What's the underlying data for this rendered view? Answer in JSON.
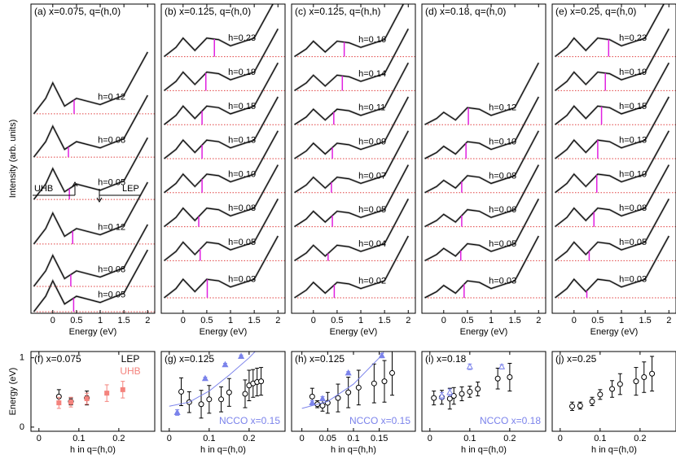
{
  "chart_data": [
    {
      "type": "line",
      "title": "(a) x=0.075, q=(h,0)",
      "xlabel": "Energy (eV)",
      "ylabel": "Intensity (arb. units)",
      "xlim": [
        -0.46,
        2.15
      ],
      "ylim": [
        0,
        10
      ],
      "xticks": [
        0,
        0.5,
        1,
        1.5,
        2
      ],
      "x": [
        -0.4,
        -0.15,
        0,
        0.25,
        0.5,
        0.75,
        1,
        1.5,
        2
      ],
      "annotations": [
        "UHB",
        "LEP"
      ],
      "series": [
        {
          "name": "h=0.12",
          "color": "#000000",
          "lep": 0.45,
          "values": [
            6.45,
            6.95,
            7.45,
            6.7,
            6.95,
            6.85,
            6.75,
            7.05,
            8.45
          ]
        },
        {
          "name": "h=0.08",
          "color": "#000000",
          "lep": 0.33,
          "values": [
            5.05,
            5.55,
            6.05,
            5.3,
            5.55,
            5.45,
            5.35,
            5.65,
            7.05
          ]
        },
        {
          "name": "h=0.05",
          "color": "#000000",
          "lep": 0.35,
          "values": [
            3.68,
            4.18,
            4.68,
            3.93,
            4.18,
            4.08,
            3.98,
            4.28,
            5.68
          ]
        },
        {
          "name": "h=0.12",
          "color": "#000000",
          "lep": 0.42,
          "values": [
            2.24,
            2.74,
            3.24,
            2.49,
            2.74,
            2.64,
            2.54,
            2.84,
            4.24
          ]
        },
        {
          "name": "h=0.08",
          "color": "#000000",
          "lep": 0.38,
          "values": [
            0.87,
            1.37,
            1.87,
            1.12,
            1.37,
            1.27,
            1.17,
            1.47,
            2.87
          ]
        },
        {
          "name": "h=0.05",
          "color": "#000000",
          "lep": 0.44,
          "values": [
            0.05,
            0.55,
            1.05,
            0.3,
            0.55,
            0.45,
            0.35,
            0.65,
            2.05
          ]
        }
      ]
    },
    {
      "type": "line",
      "title": "(b) x=0.125, q=(h,0)",
      "xlabel": "Energy (eV)",
      "xlim": [
        -0.46,
        2.15
      ],
      "ylim": [
        0,
        10
      ],
      "xticks": [
        0,
        0.5,
        1,
        1.5,
        2
      ],
      "x": [
        -0.4,
        -0.15,
        0,
        0.25,
        0.5,
        0.75,
        1,
        1.5,
        2
      ],
      "series": [
        {
          "name": "h=0.23",
          "color": "#000000",
          "lep": 0.66,
          "values": [
            8.3,
            8.6,
            8.9,
            8.5,
            8.9,
            8.85,
            8.65,
            8.9,
            10.3
          ]
        },
        {
          "name": "h=0.19",
          "color": "#000000",
          "lep": 0.48,
          "values": [
            7.2,
            7.5,
            7.8,
            7.4,
            7.8,
            7.75,
            7.55,
            7.8,
            9.2
          ]
        },
        {
          "name": "h=0.15",
          "color": "#000000",
          "lep": 0.4,
          "values": [
            6.1,
            6.4,
            6.7,
            6.3,
            6.7,
            6.65,
            6.45,
            6.7,
            8.1
          ]
        },
        {
          "name": "h=0.13",
          "color": "#000000",
          "lep": 0.4,
          "values": [
            5.0,
            5.3,
            5.6,
            5.2,
            5.6,
            5.55,
            5.35,
            5.6,
            7.0
          ]
        },
        {
          "name": "h=0.10",
          "color": "#000000",
          "lep": 0.4,
          "values": [
            3.9,
            4.2,
            4.5,
            4.1,
            4.5,
            4.45,
            4.25,
            4.5,
            5.9
          ]
        },
        {
          "name": "h=0.08",
          "color": "#000000",
          "lep": 0.33,
          "values": [
            2.8,
            3.1,
            3.4,
            3.0,
            3.4,
            3.35,
            3.15,
            3.4,
            4.8
          ]
        },
        {
          "name": "h=0.05",
          "color": "#000000",
          "lep": 0.36,
          "values": [
            1.7,
            2.0,
            2.3,
            1.9,
            2.3,
            2.25,
            2.05,
            2.3,
            3.7
          ]
        },
        {
          "name": "h=0.03",
          "color": "#000000",
          "lep": 0.51,
          "values": [
            0.5,
            0.8,
            1.1,
            0.7,
            1.1,
            1.05,
            0.85,
            1.1,
            2.5
          ]
        }
      ]
    },
    {
      "type": "line",
      "title": "(c) x=0.125, q=(h,h)",
      "xlabel": "Energy (eV)",
      "xlim": [
        -0.46,
        2.15
      ],
      "ylim": [
        0,
        10
      ],
      "xticks": [
        0,
        0.5,
        1,
        1.5,
        2
      ],
      "x": [
        -0.4,
        -0.15,
        0,
        0.25,
        0.5,
        0.75,
        1,
        1.5,
        2
      ],
      "series": [
        {
          "name": "h=0.16",
          "color": "#000000",
          "lep": 0.65,
          "values": [
            8.3,
            8.55,
            8.8,
            8.45,
            8.8,
            8.75,
            8.6,
            8.85,
            10.3
          ]
        },
        {
          "name": "h=0.14",
          "color": "#000000",
          "lep": 0.61,
          "values": [
            7.2,
            7.45,
            7.7,
            7.35,
            7.7,
            7.65,
            7.5,
            7.75,
            9.2
          ]
        },
        {
          "name": "h=0.11",
          "color": "#000000",
          "lep": 0.43,
          "values": [
            6.1,
            6.35,
            6.6,
            6.25,
            6.6,
            6.55,
            6.4,
            6.65,
            8.1
          ]
        },
        {
          "name": "h=0.09",
          "color": "#000000",
          "lep": 0.4,
          "values": [
            5.0,
            5.25,
            5.5,
            5.15,
            5.5,
            5.45,
            5.3,
            5.55,
            7.0
          ]
        },
        {
          "name": "h=0.07",
          "color": "#000000",
          "lep": 0.38,
          "values": [
            3.9,
            4.15,
            4.4,
            4.05,
            4.4,
            4.35,
            4.2,
            4.45,
            5.9
          ]
        },
        {
          "name": "h=0.05",
          "color": "#000000",
          "lep": 0.4,
          "values": [
            2.8,
            3.05,
            3.3,
            2.95,
            3.3,
            3.25,
            3.1,
            3.35,
            4.8
          ]
        },
        {
          "name": "h=0.04",
          "color": "#000000",
          "lep": 0.31,
          "values": [
            1.7,
            1.95,
            2.2,
            1.85,
            2.2,
            2.15,
            2.0,
            2.25,
            3.7
          ]
        },
        {
          "name": "h=0.02",
          "color": "#000000",
          "lep": 0.44,
          "values": [
            0.5,
            0.75,
            1.0,
            0.65,
            1.0,
            0.95,
            0.8,
            1.05,
            2.5
          ]
        }
      ]
    },
    {
      "type": "line",
      "title": "(d) x=0.18, q=(h,0)",
      "xlabel": "Energy (eV)",
      "xlim": [
        -0.46,
        2.15
      ],
      "ylim": [
        0,
        10
      ],
      "xticks": [
        0,
        0.5,
        1,
        1.5,
        2
      ],
      "x": [
        -0.4,
        -0.15,
        0,
        0.25,
        0.5,
        0.75,
        1,
        1.5,
        2
      ],
      "series": [
        {
          "name": "h=0.12",
          "color": "#000000",
          "lep": 0.52,
          "values": [
            6.1,
            6.3,
            6.5,
            6.25,
            6.65,
            6.6,
            6.4,
            6.65,
            8.1
          ]
        },
        {
          "name": "h=0.10",
          "color": "#000000",
          "lep": 0.47,
          "values": [
            5.0,
            5.2,
            5.4,
            5.15,
            5.55,
            5.5,
            5.3,
            5.55,
            7.0
          ]
        },
        {
          "name": "h=0.08",
          "color": "#000000",
          "lep": 0.38,
          "values": [
            3.9,
            4.1,
            4.3,
            4.05,
            4.45,
            4.4,
            4.2,
            4.45,
            5.9
          ]
        },
        {
          "name": "h=0.06",
          "color": "#000000",
          "lep": 0.38,
          "values": [
            2.8,
            3.0,
            3.2,
            2.95,
            3.35,
            3.3,
            3.1,
            3.35,
            4.8
          ]
        },
        {
          "name": "h=0.05",
          "color": "#000000",
          "lep": 0.36,
          "values": [
            1.7,
            1.9,
            2.1,
            1.85,
            2.25,
            2.2,
            2.0,
            2.25,
            3.7
          ]
        },
        {
          "name": "h=0.03",
          "color": "#000000",
          "lep": 0.43,
          "values": [
            0.5,
            0.7,
            0.9,
            0.65,
            1.05,
            1.0,
            0.8,
            1.05,
            2.5
          ]
        }
      ]
    },
    {
      "type": "line",
      "title": "(e) x=0.25, q=(h,0)",
      "xlabel": "Energy (eV)",
      "xlim": [
        -0.46,
        2.15
      ],
      "ylim": [
        0,
        10
      ],
      "xticks": [
        0,
        0.5,
        1,
        1.5,
        2
      ],
      "x": [
        -0.4,
        -0.15,
        0,
        0.25,
        0.5,
        0.75,
        1,
        1.5,
        2
      ],
      "series": [
        {
          "name": "h=0.23",
          "color": "#000000",
          "lep": 0.73,
          "values": [
            8.3,
            8.6,
            8.9,
            8.5,
            8.9,
            8.85,
            8.65,
            8.9,
            10.3
          ]
        },
        {
          "name": "h=0.19",
          "color": "#000000",
          "lep": 0.66,
          "values": [
            7.2,
            7.5,
            7.8,
            7.4,
            7.8,
            7.75,
            7.55,
            7.8,
            9.2
          ]
        },
        {
          "name": "h=0.15",
          "color": "#000000",
          "lep": 0.58,
          "values": [
            6.1,
            6.4,
            6.7,
            6.3,
            6.7,
            6.65,
            6.45,
            6.7,
            8.1
          ]
        },
        {
          "name": "h=0.13",
          "color": "#000000",
          "lep": 0.5,
          "values": [
            5.0,
            5.3,
            5.6,
            5.2,
            5.6,
            5.55,
            5.35,
            5.6,
            7.0
          ]
        },
        {
          "name": "h=0.10",
          "color": "#000000",
          "lep": 0.48,
          "values": [
            3.9,
            4.2,
            4.5,
            4.1,
            4.5,
            4.45,
            4.25,
            4.5,
            5.9
          ]
        },
        {
          "name": "h=0.08",
          "color": "#000000",
          "lep": 0.42,
          "values": [
            2.8,
            3.1,
            3.4,
            3.0,
            3.4,
            3.35,
            3.15,
            3.4,
            4.8
          ]
        },
        {
          "name": "h=0.05",
          "color": "#000000",
          "lep": 0.32,
          "values": [
            1.7,
            2.0,
            2.3,
            1.9,
            2.3,
            2.25,
            2.05,
            2.3,
            3.7
          ]
        },
        {
          "name": "h=0.03",
          "color": "#000000",
          "lep": 0.27,
          "values": [
            0.5,
            0.8,
            1.1,
            0.7,
            1.1,
            1.05,
            0.85,
            1.1,
            2.5
          ]
        }
      ]
    },
    {
      "type": "scatter",
      "title": "(f) x=0.075",
      "xlabel": "h in q=(h,0)",
      "ylabel": "Energy (eV)",
      "xlim": [
        -0.02,
        0.29
      ],
      "ylim": [
        -0.06,
        1.09
      ],
      "xticks": [
        0,
        0.1,
        0.2
      ],
      "yticks": [
        0,
        1
      ],
      "series": [
        {
          "name": "LEP",
          "color": "#000000",
          "marker": "circle",
          "x": [
            0.05,
            0.08,
            0.12
          ],
          "values": [
            0.44,
            0.37,
            0.42
          ],
          "errors": [
            0.1,
            0.05,
            0.1
          ]
        },
        {
          "name": "UHB",
          "color": "#f4837d",
          "marker": "square",
          "x": [
            0.05,
            0.08,
            0.12,
            0.17,
            0.21
          ],
          "values": [
            0.35,
            0.36,
            0.41,
            0.49,
            0.54
          ],
          "errors": [
            0.08,
            0.07,
            0.08,
            0.12,
            0.12
          ]
        }
      ]
    },
    {
      "type": "scatter",
      "title": "(g) x=0.125",
      "xlabel": "h in q=(h,0)",
      "xlim": [
        -0.02,
        0.29
      ],
      "ylim": [
        -0.06,
        1.09
      ],
      "xticks": [
        0,
        0.1,
        0.2
      ],
      "series": [
        {
          "color": "#000000",
          "marker": "circle",
          "x": [
            0.03,
            0.05,
            0.08,
            0.1,
            0.13,
            0.15,
            0.19,
            0.2,
            0.21,
            0.22,
            0.23
          ],
          "values": [
            0.51,
            0.36,
            0.33,
            0.4,
            0.4,
            0.5,
            0.48,
            0.6,
            0.63,
            0.65,
            0.66
          ],
          "errors": [
            0.2,
            0.15,
            0.2,
            0.2,
            0.18,
            0.2,
            0.2,
            0.22,
            0.2,
            0.2,
            0.2
          ]
        },
        {
          "name": "NCCO x=0.15",
          "color": "#7b83eb",
          "marker": "triangle",
          "x": [
            0.02,
            0.09,
            0.14,
            0.18
          ],
          "values": [
            0.21,
            0.7,
            0.9,
            1.02
          ],
          "errors": [
            0.04,
            0.02,
            0.02,
            0.02
          ],
          "fit_x": [
            0,
            0.05,
            0.1,
            0.15,
            0.2,
            0.25
          ],
          "fit_values": [
            0.3,
            0.36,
            0.52,
            0.75,
            1.0,
            1.3
          ]
        }
      ]
    },
    {
      "type": "scatter",
      "title": "(h) x=0.125",
      "xlabel": "h in q=(h,h)",
      "xlim": [
        -0.02,
        0.22
      ],
      "ylim": [
        -0.06,
        1.09
      ],
      "xticks": [
        0,
        0.05,
        0.1,
        0.15
      ],
      "series": [
        {
          "color": "#000000",
          "marker": "circle",
          "x": [
            0.02,
            0.03,
            0.04,
            0.05,
            0.07,
            0.09,
            0.11,
            0.14,
            0.16,
            0.175
          ],
          "values": [
            0.44,
            0.33,
            0.31,
            0.35,
            0.42,
            0.5,
            0.57,
            0.63,
            0.66,
            0.78
          ],
          "errors": [
            0.12,
            0.05,
            0.08,
            0.15,
            0.2,
            0.22,
            0.25,
            0.28,
            0.3,
            0.32
          ]
        },
        {
          "name": "NCCO x=0.15",
          "color": "#7b83eb",
          "marker": "triangle",
          "x": [
            0.02,
            0.04,
            0.09,
            0.155
          ],
          "values": [
            0.35,
            0.41,
            0.78,
            1.03
          ],
          "errors": [
            0.03,
            0.03,
            0.02,
            0.03
          ],
          "fit_x": [
            0,
            0.05,
            0.1,
            0.15,
            0.2
          ],
          "fit_values": [
            0.27,
            0.37,
            0.62,
            1.0,
            1.5
          ]
        }
      ]
    },
    {
      "type": "scatter",
      "title": "(i) x=0.18",
      "xlabel": "h in q=(h,0)",
      "xlim": [
        -0.02,
        0.29
      ],
      "ylim": [
        -0.06,
        1.09
      ],
      "xticks": [
        0,
        0.1,
        0.2
      ],
      "series": [
        {
          "color": "#000000",
          "marker": "circle",
          "x": [
            0.01,
            0.03,
            0.05,
            0.06,
            0.08,
            0.1,
            0.12,
            0.17,
            0.2
          ],
          "values": [
            0.42,
            0.43,
            0.41,
            0.45,
            0.48,
            0.51,
            0.55,
            0.7,
            0.72
          ],
          "errors": [
            0.1,
            0.1,
            0.15,
            0.12,
            0.1,
            0.08,
            0.1,
            0.15,
            0.2
          ]
        },
        {
          "name": "NCCO x=0.18",
          "color": "#7b83eb",
          "marker": "open-triangle",
          "x": [
            0.03,
            0.05,
            0.1,
            0.18
          ],
          "values": [
            0.45,
            0.5,
            0.87,
            0.87
          ],
          "errors": [
            0.05,
            0.05,
            0.04,
            0.03
          ]
        }
      ]
    },
    {
      "type": "scatter",
      "title": "(j) x=0.25",
      "xlabel": "h in q=(h,0)",
      "xlim": [
        -0.02,
        0.29
      ],
      "ylim": [
        -0.06,
        1.09
      ],
      "xticks": [
        0,
        0.1,
        0.2
      ],
      "series": [
        {
          "color": "#000000",
          "marker": "circle",
          "x": [
            0.03,
            0.05,
            0.08,
            0.1,
            0.13,
            0.15,
            0.19,
            0.21,
            0.23
          ],
          "values": [
            0.3,
            0.31,
            0.37,
            0.47,
            0.55,
            0.62,
            0.66,
            0.72,
            0.77
          ],
          "errors": [
            0.06,
            0.05,
            0.06,
            0.07,
            0.12,
            0.15,
            0.2,
            0.22,
            0.25
          ]
        }
      ]
    }
  ]
}
